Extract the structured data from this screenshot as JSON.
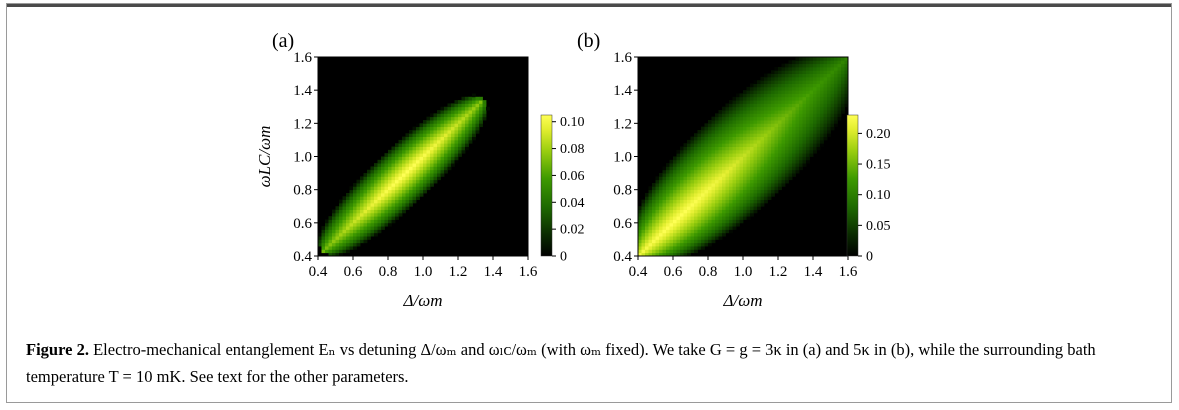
{
  "figure": {
    "caption_label": "Figure 2.",
    "caption_text": "Electro-mechanical entanglement Eₙ vs detuning Δ/ωₘ and ωₗᴄ/ωₘ (with ωₘ fixed). We take G = g = 3κ in (a) and 5κ in (b), while the surrounding bath temperature T = 10 mK. See text for the other parameters."
  },
  "chart_data": [
    {
      "type": "heatmap",
      "panel_label": "(a)",
      "xlabel": "Δ/ωm",
      "ylabel": "ωLC/ωm",
      "xlim": [
        0.4,
        1.6
      ],
      "ylim": [
        0.4,
        1.6
      ],
      "x_ticks": [
        "0.4",
        "0.6",
        "0.8",
        "1.0",
        "1.2",
        "1.4",
        "1.6"
      ],
      "y_ticks": [
        "0.4",
        "0.6",
        "0.8",
        "1.0",
        "1.2",
        "1.4",
        "1.6"
      ],
      "colorbar_range": [
        0,
        0.105
      ],
      "colorbar_ticks": [
        "0",
        "0.02",
        "0.04",
        "0.06",
        "0.08",
        "0.10"
      ],
      "colorbar_values": [
        0,
        0.02,
        0.04,
        0.06,
        0.08,
        0.1
      ],
      "region": {
        "lo": 0.43,
        "hi": 1.34,
        "width_at_mid": 0.2,
        "peak_at": 0.9,
        "peak_value": 0.105
      }
    },
    {
      "type": "heatmap",
      "panel_label": "(b)",
      "xlabel": "Δ/ωm",
      "ylabel": "",
      "xlim": [
        0.4,
        1.6
      ],
      "ylim": [
        0.4,
        1.6
      ],
      "x_ticks": [
        "0.4",
        "0.6",
        "0.8",
        "1.0",
        "1.2",
        "1.4",
        "1.6"
      ],
      "y_ticks": [
        "0.4",
        "0.6",
        "0.8",
        "1.0",
        "1.2",
        "1.4",
        "1.6"
      ],
      "colorbar_range": [
        0,
        0.23
      ],
      "colorbar_ticks": [
        "0",
        "0.05",
        "0.10",
        "0.15",
        "0.20"
      ],
      "colorbar_values": [
        0,
        0.05,
        0.1,
        0.15,
        0.2
      ],
      "region": {
        "lo": 0.4,
        "hi": 1.6,
        "width_at_mid": 0.38,
        "peak_at": 0.62,
        "peak_value": 0.23
      }
    }
  ]
}
